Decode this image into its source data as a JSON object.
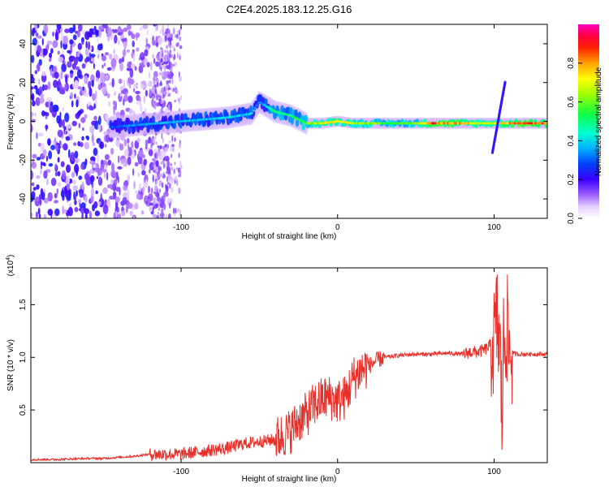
{
  "title": "C2E4.2025.183.12.25.G16",
  "chart_data": [
    {
      "type": "heatmap",
      "xlabel": "Height of straight line (km)",
      "ylabel": "Frequency (Hz)",
      "xlim": [
        -196,
        134
      ],
      "ylim": [
        -50,
        50
      ],
      "xticks": [
        -100,
        0,
        100
      ],
      "yticks": [
        -40,
        -20,
        0,
        20,
        40
      ],
      "colorbar": {
        "label": "Normalized spectral amplitude",
        "range": [
          0,
          1
        ],
        "ticks": [
          0.0,
          0.2,
          0.4,
          0.6,
          0.8
        ],
        "colors": [
          "#ffffff",
          "#c080ff",
          "#7a1fff",
          "#2a00ff",
          "#0050ff",
          "#00c8ff",
          "#00ffc0",
          "#20ff40",
          "#a0ff00",
          "#ffff00",
          "#ffa000",
          "#ff2000",
          "#ff0040",
          "#ff00c0"
        ]
      },
      "ridge": [
        {
          "x": -145,
          "freq": -3,
          "amp": 0.3
        },
        {
          "x": -130,
          "freq": -2,
          "amp": 0.35
        },
        {
          "x": -115,
          "freq": -1,
          "amp": 0.38
        },
        {
          "x": -100,
          "freq": 0,
          "amp": 0.38
        },
        {
          "x": -85,
          "freq": 1,
          "amp": 0.4
        },
        {
          "x": -70,
          "freq": 2,
          "amp": 0.42
        },
        {
          "x": -55,
          "freq": 4,
          "amp": 0.42
        },
        {
          "x": -50,
          "freq": 10,
          "amp": 0.3
        },
        {
          "x": -40,
          "freq": 5,
          "amp": 0.55
        },
        {
          "x": -30,
          "freq": 3,
          "amp": 0.5
        },
        {
          "x": -20,
          "freq": -1,
          "amp": 0.6
        },
        {
          "x": -10,
          "freq": -1,
          "amp": 0.75
        },
        {
          "x": 0,
          "freq": 0,
          "amp": 0.75
        },
        {
          "x": 10,
          "freq": -1,
          "amp": 0.7
        },
        {
          "x": 30,
          "freq": -1,
          "amp": 0.6
        },
        {
          "x": 50,
          "freq": -1,
          "amp": 0.62
        },
        {
          "x": 60,
          "freq": -1,
          "amp": 0.9
        },
        {
          "x": 80,
          "freq": -1,
          "amp": 0.8
        },
        {
          "x": 100,
          "freq": -1,
          "amp": 0.7
        },
        {
          "x": 120,
          "freq": -1,
          "amp": 0.95
        },
        {
          "x": 134,
          "freq": -1,
          "amp": 0.85
        }
      ]
    },
    {
      "type": "line",
      "xlabel": "Height of straight line (km)",
      "ylabel": "SNR (10 * v/v)",
      "multiplier": "(x10",
      "multiplier_exp": "4",
      "multiplier_close": ")",
      "xlim": [
        -196,
        134
      ],
      "ylim": [
        0,
        1.85
      ],
      "xticks": [
        -100,
        0,
        100
      ],
      "yticks": [
        0.5,
        1.0,
        1.5
      ],
      "ytick_labels": [
        "0.5",
        "1.0",
        "1.5"
      ],
      "series": [
        {
          "color": "#e8302a",
          "x": [
            -196,
            -180,
            -160,
            -150,
            -140,
            -130,
            -120,
            -110,
            -100,
            -90,
            -80,
            -70,
            -60,
            -50,
            -40,
            -30,
            -25,
            -20,
            -15,
            -10,
            -5,
            0,
            5,
            10,
            15,
            20,
            25,
            30,
            35,
            40,
            50,
            60,
            70,
            80,
            85,
            90,
            95,
            100,
            102,
            104,
            105,
            106,
            108,
            110,
            115,
            120,
            134
          ],
          "y": [
            0.03,
            0.03,
            0.04,
            0.04,
            0.05,
            0.06,
            0.08,
            0.08,
            0.08,
            0.1,
            0.12,
            0.14,
            0.18,
            0.2,
            0.22,
            0.3,
            0.4,
            0.45,
            0.55,
            0.6,
            0.62,
            0.58,
            0.62,
            0.8,
            0.88,
            0.92,
            0.97,
            1.0,
            1.01,
            1.02,
            1.03,
            1.03,
            1.04,
            1.03,
            1.05,
            1.05,
            1.08,
            1.15,
            1.35,
            1.0,
            0.4,
            1.1,
            1.3,
            1.05,
            1.03,
            1.03,
            1.03
          ]
        }
      ]
    }
  ]
}
